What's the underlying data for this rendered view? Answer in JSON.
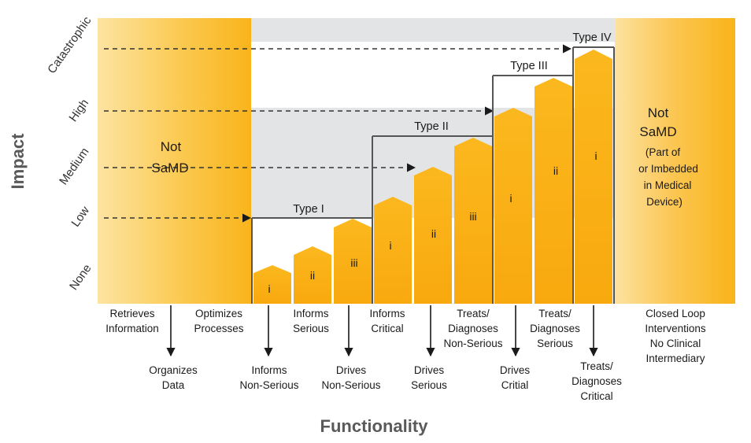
{
  "axis": {
    "x_title": "Functionality",
    "y_title": "Impact"
  },
  "impact_levels": [
    "None",
    "Low",
    "Medium",
    "High",
    "Catastrophic"
  ],
  "not_samd_left": {
    "line1": "Not",
    "line2": "SaMD"
  },
  "not_samd_right": {
    "line1": "Not",
    "line2": "SaMD",
    "sub": [
      "(Part of",
      "or Imbedded",
      "in Medical",
      "Device)"
    ]
  },
  "types": [
    "Type I",
    "Type II",
    "Type III",
    "Type IV"
  ],
  "bars": [
    "i",
    "ii",
    "iii",
    "i",
    "ii",
    "iii",
    "i",
    "ii",
    "i"
  ],
  "func_upper": [
    [
      "Retrieves",
      "Information"
    ],
    [
      "Optimizes",
      "Processes"
    ],
    [
      "Informs",
      "Serious"
    ],
    [
      "Informs",
      "Critical"
    ],
    [
      "Treats/",
      "Diagnoses",
      "Non-Serious"
    ],
    [
      "Treats/",
      "Diagnoses",
      "Serious"
    ],
    [
      "Closed Loop",
      "Interventions",
      "No Clinical",
      "Intermediary"
    ]
  ],
  "func_lower": [
    [
      "Organizes",
      "Data"
    ],
    [
      "Informs",
      "Non-Serious"
    ],
    [
      "Drives",
      "Non-Serious"
    ],
    [
      "Drives",
      "Serious"
    ],
    [
      "Drives",
      "Critial"
    ],
    [
      "Treats/",
      "Diagnoses",
      "Critical"
    ]
  ],
  "colors": {
    "amber": "#f9b41a",
    "amber_light": "#fde4a0",
    "band_gray": "#e3e4e6",
    "line": "#555555",
    "arrow": "#1a1a1a"
  }
}
